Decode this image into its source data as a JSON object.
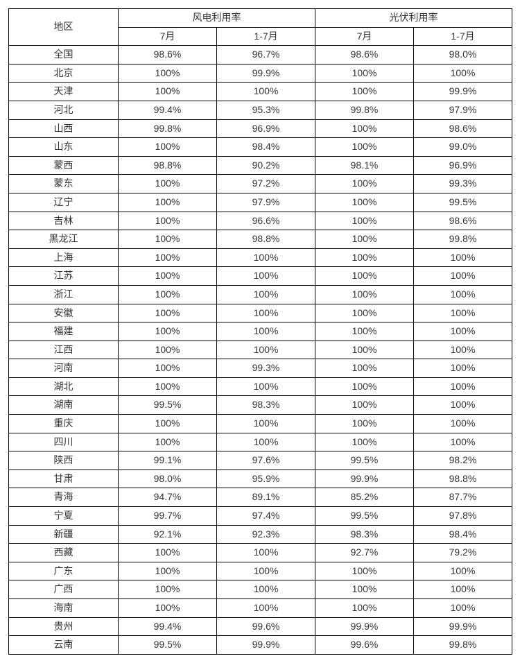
{
  "table": {
    "type": "table",
    "border_color": "#000000",
    "text_color": "#333333",
    "background_color": "#ffffff",
    "font_size_pt": 10.5,
    "header": {
      "region_label": "地区",
      "group1_label": "风电利用率",
      "group2_label": "光伏利用率",
      "sub1_label": "7月",
      "sub2_label": "1-7月"
    },
    "columns": [
      "地区",
      "风电利用率 7月",
      "风电利用率 1-7月",
      "光伏利用率 7月",
      "光伏利用率 1-7月"
    ],
    "rows": [
      {
        "region": "全国",
        "wind_jul": "98.6%",
        "wind_ytd": "96.7%",
        "pv_jul": "98.6%",
        "pv_ytd": "98.0%"
      },
      {
        "region": "北京",
        "wind_jul": "100%",
        "wind_ytd": "99.9%",
        "pv_jul": "100%",
        "pv_ytd": "100%"
      },
      {
        "region": "天津",
        "wind_jul": "100%",
        "wind_ytd": "100%",
        "pv_jul": "100%",
        "pv_ytd": "99.9%"
      },
      {
        "region": "河北",
        "wind_jul": "99.4%",
        "wind_ytd": "95.3%",
        "pv_jul": "99.8%",
        "pv_ytd": "97.9%"
      },
      {
        "region": "山西",
        "wind_jul": "99.8%",
        "wind_ytd": "96.9%",
        "pv_jul": "100%",
        "pv_ytd": "98.6%"
      },
      {
        "region": "山东",
        "wind_jul": "100%",
        "wind_ytd": "98.4%",
        "pv_jul": "100%",
        "pv_ytd": "99.0%"
      },
      {
        "region": "蒙西",
        "wind_jul": "98.8%",
        "wind_ytd": "90.2%",
        "pv_jul": "98.1%",
        "pv_ytd": "96.9%"
      },
      {
        "region": "蒙东",
        "wind_jul": "100%",
        "wind_ytd": "97.2%",
        "pv_jul": "100%",
        "pv_ytd": "99.3%"
      },
      {
        "region": "辽宁",
        "wind_jul": "100%",
        "wind_ytd": "97.9%",
        "pv_jul": "100%",
        "pv_ytd": "99.5%"
      },
      {
        "region": "吉林",
        "wind_jul": "100%",
        "wind_ytd": "96.6%",
        "pv_jul": "100%",
        "pv_ytd": "98.6%"
      },
      {
        "region": "黑龙江",
        "wind_jul": "100%",
        "wind_ytd": "98.8%",
        "pv_jul": "100%",
        "pv_ytd": "99.8%"
      },
      {
        "region": "上海",
        "wind_jul": "100%",
        "wind_ytd": "100%",
        "pv_jul": "100%",
        "pv_ytd": "100%"
      },
      {
        "region": "江苏",
        "wind_jul": "100%",
        "wind_ytd": "100%",
        "pv_jul": "100%",
        "pv_ytd": "100%"
      },
      {
        "region": "浙江",
        "wind_jul": "100%",
        "wind_ytd": "100%",
        "pv_jul": "100%",
        "pv_ytd": "100%"
      },
      {
        "region": "安徽",
        "wind_jul": "100%",
        "wind_ytd": "100%",
        "pv_jul": "100%",
        "pv_ytd": "100%"
      },
      {
        "region": "福建",
        "wind_jul": "100%",
        "wind_ytd": "100%",
        "pv_jul": "100%",
        "pv_ytd": "100%"
      },
      {
        "region": "江西",
        "wind_jul": "100%",
        "wind_ytd": "100%",
        "pv_jul": "100%",
        "pv_ytd": "100%"
      },
      {
        "region": "河南",
        "wind_jul": "100%",
        "wind_ytd": "99.3%",
        "pv_jul": "100%",
        "pv_ytd": "100%"
      },
      {
        "region": "湖北",
        "wind_jul": "100%",
        "wind_ytd": "100%",
        "pv_jul": "100%",
        "pv_ytd": "100%"
      },
      {
        "region": "湖南",
        "wind_jul": "99.5%",
        "wind_ytd": "98.3%",
        "pv_jul": "100%",
        "pv_ytd": "100%"
      },
      {
        "region": "重庆",
        "wind_jul": "100%",
        "wind_ytd": "100%",
        "pv_jul": "100%",
        "pv_ytd": "100%"
      },
      {
        "region": "四川",
        "wind_jul": "100%",
        "wind_ytd": "100%",
        "pv_jul": "100%",
        "pv_ytd": "100%"
      },
      {
        "region": "陕西",
        "wind_jul": "99.1%",
        "wind_ytd": "97.6%",
        "pv_jul": "99.5%",
        "pv_ytd": "98.2%"
      },
      {
        "region": "甘肃",
        "wind_jul": "98.0%",
        "wind_ytd": "95.9%",
        "pv_jul": "99.9%",
        "pv_ytd": "98.8%"
      },
      {
        "region": "青海",
        "wind_jul": "94.7%",
        "wind_ytd": "89.1%",
        "pv_jul": "85.2%",
        "pv_ytd": "87.7%"
      },
      {
        "region": "宁夏",
        "wind_jul": "99.7%",
        "wind_ytd": "97.4%",
        "pv_jul": "99.5%",
        "pv_ytd": "97.8%"
      },
      {
        "region": "新疆",
        "wind_jul": "92.1%",
        "wind_ytd": "92.3%",
        "pv_jul": "98.3%",
        "pv_ytd": "98.4%"
      },
      {
        "region": "西藏",
        "wind_jul": "100%",
        "wind_ytd": "100%",
        "pv_jul": "92.7%",
        "pv_ytd": "79.2%"
      },
      {
        "region": "广东",
        "wind_jul": "100%",
        "wind_ytd": "100%",
        "pv_jul": "100%",
        "pv_ytd": "100%"
      },
      {
        "region": "广西",
        "wind_jul": "100%",
        "wind_ytd": "100%",
        "pv_jul": "100%",
        "pv_ytd": "100%"
      },
      {
        "region": "海南",
        "wind_jul": "100%",
        "wind_ytd": "100%",
        "pv_jul": "100%",
        "pv_ytd": "100%"
      },
      {
        "region": "贵州",
        "wind_jul": "99.4%",
        "wind_ytd": "99.6%",
        "pv_jul": "99.9%",
        "pv_ytd": "99.9%"
      },
      {
        "region": "云南",
        "wind_jul": "99.5%",
        "wind_ytd": "99.9%",
        "pv_jul": "99.6%",
        "pv_ytd": "99.8%"
      }
    ]
  }
}
